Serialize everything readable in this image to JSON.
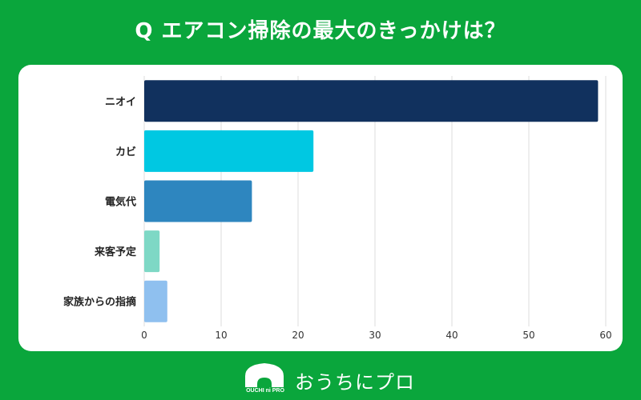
{
  "header": {
    "title": "Q エアコン掃除の最大のきっかけは？"
  },
  "chart_data": {
    "type": "bar",
    "orientation": "horizontal",
    "categories": [
      "ニオイ",
      "カビ",
      "電気代",
      "来客予定",
      "家族からの指摘"
    ],
    "values": [
      59,
      22,
      14,
      2,
      3
    ],
    "colors": [
      "#11315e",
      "#00c8e2",
      "#2e86bf",
      "#7ed8c5",
      "#8fc0ef"
    ],
    "xlim": [
      0,
      60
    ],
    "xticks": [
      "0",
      "10",
      "20",
      "30",
      "40",
      "50",
      "60"
    ],
    "grid": true,
    "title": "Q エアコン掃除の最大のきっかけは？",
    "xlabel": "",
    "ylabel": ""
  },
  "footer": {
    "logo_text": "おうちにプロ",
    "logo_mark_text": "OUCHI ni PRO"
  },
  "colors": {
    "background": "#0aa63c",
    "card": "#ffffff",
    "grid": "#dddddd"
  }
}
